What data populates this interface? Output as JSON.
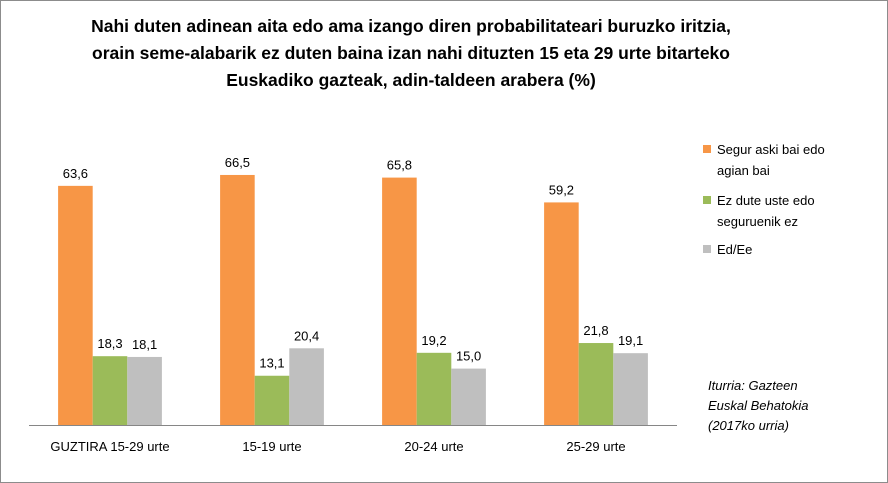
{
  "chart_data": {
    "type": "bar",
    "title": "Nahi duten adinean aita edo ama izango diren probabilitateari buruzko iritzia, orain seme-alabarik ez duten baina izan nahi dituzten 15 eta 29 urte bitarteko Euskadiko gazteak, adin-taldeen arabera (%)",
    "title_lines": [
      "Nahi duten adinean aita edo ama izango diren probabilitateari buruzko iritzia,",
      "orain seme-alabarik ez duten baina izan nahi dituzten 15 eta 29 urte bitarteko",
      "Euskadiko gazteak, adin-taldeen arabera (%)"
    ],
    "categories": [
      "GUZTIRA 15-29 urte",
      "15-19 urte",
      "20-24 urte",
      "25-29 urte"
    ],
    "series": [
      {
        "name": "Segur aski bai edo agian bai",
        "legend_lines": [
          "Segur aski bai edo",
          "agian bai"
        ],
        "color": "#f79646",
        "values": [
          63.6,
          66.5,
          65.8,
          59.2
        ],
        "labels": [
          "63,6",
          "66,5",
          "65,8",
          "59,2"
        ]
      },
      {
        "name": "Ez dute uste edo seguruenik ez",
        "legend_lines": [
          "Ez dute uste edo",
          "seguruenik ez"
        ],
        "color": "#9bbb59",
        "values": [
          18.3,
          13.1,
          19.2,
          21.8
        ],
        "labels": [
          "18,3",
          "13,1",
          "19,2",
          "21,8"
        ]
      },
      {
        "name": "Ed/Ee",
        "legend_lines": [
          "Ed/Ee"
        ],
        "color": "#bfbfbf",
        "values": [
          18.1,
          20.4,
          15.0,
          19.1
        ],
        "labels": [
          "18,1",
          "20,4",
          "15,0",
          "19,1"
        ]
      }
    ],
    "ylim": [
      0,
      70
    ],
    "grid": false,
    "legend_position": "right",
    "xlabel": "",
    "ylabel": ""
  },
  "source": [
    "Iturria: Gazteen",
    "Euskal Behatokia",
    "(2017ko urria)"
  ]
}
